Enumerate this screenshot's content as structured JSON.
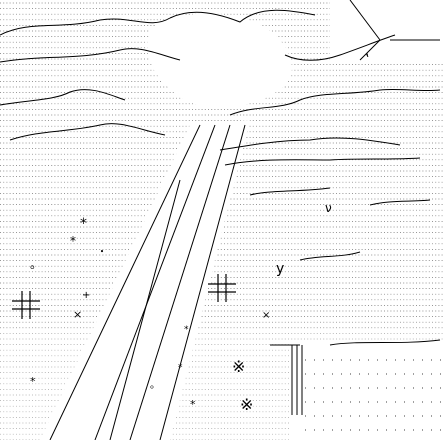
{
  "artwork": {
    "kind": "text-art illustration",
    "ink_color": "#000000",
    "background_color": "#ffffff",
    "glyphs": {
      "star": "*",
      "cross_sign": "※",
      "small_circle": "。",
      "dot": "・",
      "nu": "ν",
      "lambda_like": "ʽ",
      "times": "×",
      "plus": "+",
      "sharp": "‖",
      "upsilon": "y"
    }
  }
}
